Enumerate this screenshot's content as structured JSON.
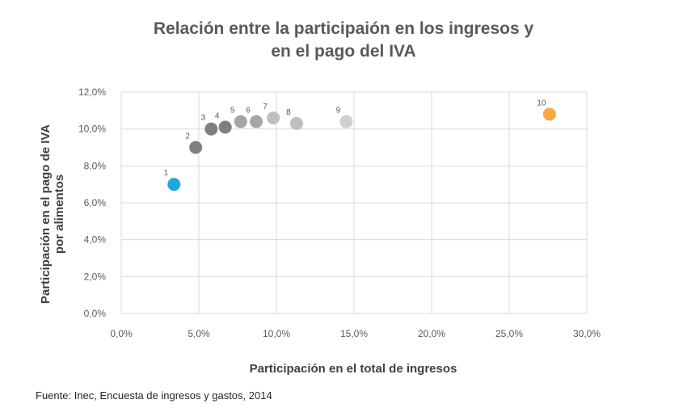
{
  "chart_data": {
    "type": "scatter",
    "title_line1": "Relación entre la participaión en los ingresos y",
    "title_line2": "en el pago del IVA",
    "xlabel": "Participación en el total de ingresos",
    "ylabel_line1": "Participación en el pago de IVA",
    "ylabel_line2": "por alimentos",
    "xlim": [
      0,
      30
    ],
    "ylim": [
      0,
      12
    ],
    "x_ticks": [
      "0,0%",
      "5,0%",
      "10,0%",
      "15,0%",
      "20,0%",
      "25,0%",
      "30,0%"
    ],
    "y_ticks": [
      "0,0%",
      "2,0%",
      "4,0%",
      "6,0%",
      "8,0%",
      "10,0%",
      "12,0%"
    ],
    "grid": true,
    "points": [
      {
        "label": "1",
        "x": 3.4,
        "y": 7.0,
        "color": "#1FA7E0"
      },
      {
        "label": "2",
        "x": 4.8,
        "y": 9.0,
        "color": "#7F7F7F"
      },
      {
        "label": "3",
        "x": 5.8,
        "y": 10.0,
        "color": "#7F7F7F"
      },
      {
        "label": "4",
        "x": 6.7,
        "y": 10.1,
        "color": "#7F7F7F"
      },
      {
        "label": "5",
        "x": 7.7,
        "y": 10.4,
        "color": "#A6A6A6"
      },
      {
        "label": "6",
        "x": 8.7,
        "y": 10.4,
        "color": "#A6A6A6"
      },
      {
        "label": "7",
        "x": 9.8,
        "y": 10.6,
        "color": "#BFBFBF"
      },
      {
        "label": "8",
        "x": 11.3,
        "y": 10.3,
        "color": "#BFBFBF"
      },
      {
        "label": "9",
        "x": 14.5,
        "y": 10.4,
        "color": "#D0D0D0"
      },
      {
        "label": "10",
        "x": 27.6,
        "y": 10.8,
        "color": "#F9A743"
      }
    ]
  },
  "source_text": "Fuente: Inec, Encuesta de ingresos y gastos, 2014"
}
